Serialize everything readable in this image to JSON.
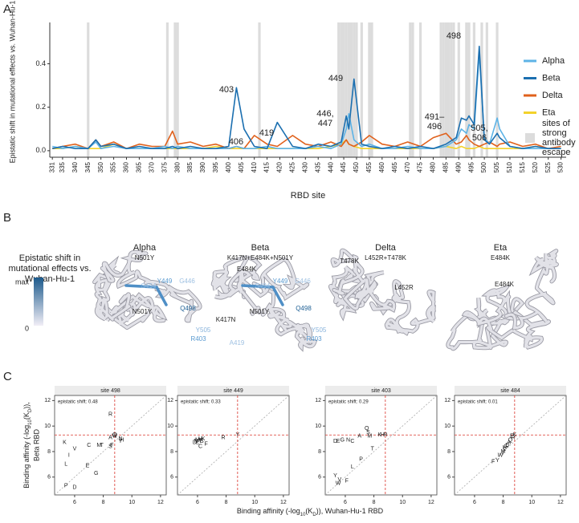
{
  "panel_labels": [
    "A",
    "B",
    "C"
  ],
  "chart_data": [
    {
      "type": "line",
      "y_label": "Epistatic shift in mutational effects vs. Wuhan-Hu-1",
      "x_label": "RBD site",
      "x": [
        331,
        335,
        340,
        345,
        348,
        350,
        355,
        360,
        365,
        370,
        375,
        378,
        380,
        385,
        390,
        395,
        400,
        403,
        406,
        410,
        415,
        419,
        425,
        430,
        435,
        440,
        444,
        446,
        447,
        449,
        452,
        455,
        460,
        465,
        470,
        475,
        480,
        485,
        489,
        491,
        493,
        494,
        496,
        498,
        500,
        502,
        505,
        506,
        510,
        515,
        520,
        525,
        530
      ],
      "xlim": [
        330,
        532
      ],
      "xticks": [
        331,
        335,
        340,
        345,
        350,
        355,
        360,
        365,
        370,
        375,
        380,
        385,
        390,
        395,
        400,
        405,
        410,
        415,
        420,
        425,
        430,
        435,
        440,
        445,
        450,
        455,
        460,
        465,
        470,
        475,
        480,
        485,
        490,
        495,
        500,
        505,
        510,
        515,
        520,
        525,
        530
      ],
      "ylim": [
        -0.03,
        0.59
      ],
      "yticks": [
        {
          "value": 0,
          "label": "0.0"
        },
        0.2,
        0.4
      ],
      "series": [
        {
          "name": "Alpha",
          "color": "#5db3e6",
          "values": [
            0.02,
            0.01,
            0.02,
            0.01,
            0.04,
            0.01,
            0.02,
            0.01,
            0.01,
            0.01,
            0.02,
            0.01,
            0.02,
            0.01,
            0.01,
            0.01,
            0.01,
            0.02,
            0.01,
            0.01,
            0.02,
            0.01,
            0.01,
            0.01,
            0.02,
            0.01,
            0.03,
            0.1,
            0.17,
            0.05,
            0.02,
            0.03,
            0.01,
            0.01,
            0.02,
            0.01,
            0.01,
            0.02,
            0.05,
            0.1,
            0.08,
            0.12,
            0.1,
            0.45,
            0.06,
            0.03,
            0.15,
            0.1,
            0.02,
            0.01,
            0.01,
            0.01,
            0.01
          ]
        },
        {
          "name": "Beta",
          "color": "#1b6fb0",
          "values": [
            0.01,
            0.02,
            0.01,
            0.01,
            0.05,
            0.02,
            0.03,
            0.01,
            0.02,
            0.01,
            0.01,
            0.02,
            0.01,
            0.02,
            0.01,
            0.01,
            0.02,
            0.29,
            0.1,
            0.02,
            0.01,
            0.13,
            0.02,
            0.01,
            0.03,
            0.02,
            0.04,
            0.16,
            0.1,
            0.33,
            0.03,
            0.02,
            0.01,
            0.02,
            0.01,
            0.02,
            0.01,
            0.03,
            0.06,
            0.15,
            0.14,
            0.16,
            0.12,
            0.48,
            0.05,
            0.03,
            0.08,
            0.06,
            0.02,
            0.01,
            0.02,
            0.01,
            0.01
          ]
        },
        {
          "name": "Delta",
          "color": "#e0611c",
          "values": [
            0.01,
            0.02,
            0.03,
            0.01,
            0.05,
            0.02,
            0.04,
            0.01,
            0.03,
            0.02,
            0.02,
            0.09,
            0.03,
            0.04,
            0.02,
            0.03,
            0.01,
            0.02,
            0.01,
            0.07,
            0.03,
            0.02,
            0.07,
            0.03,
            0.02,
            0.04,
            0.02,
            0.05,
            0.03,
            0.02,
            0.04,
            0.07,
            0.03,
            0.02,
            0.04,
            0.02,
            0.06,
            0.08,
            0.03,
            0.04,
            0.07,
            0.05,
            0.03,
            0.02,
            0.03,
            0.04,
            0.02,
            0.03,
            0.04,
            0.02,
            0.03,
            0.01,
            0.02
          ]
        },
        {
          "name": "Eta",
          "color": "#f3d22b",
          "values": [
            0.01,
            0.01,
            0.02,
            0.01,
            0.01,
            0.01,
            0.03,
            0.01,
            0.01,
            0.01,
            0.01,
            0.01,
            0.01,
            0.01,
            0.01,
            0.02,
            0.01,
            0.01,
            0.01,
            0.01,
            0.01,
            0.01,
            0.01,
            0.01,
            0.01,
            0.02,
            0.03,
            0.05,
            0.03,
            0.02,
            0.01,
            0.01,
            0.01,
            0.01,
            0.01,
            0.01,
            0.01,
            0.02,
            0.01,
            0.02,
            0.01,
            0.01,
            0.01,
            0.02,
            0.01,
            0.01,
            0.01,
            0.01,
            0.01,
            0.01,
            0.02,
            0.01,
            0.01
          ]
        }
      ],
      "escape_sites": [
        345,
        376,
        379,
        380,
        412,
        443,
        444,
        445,
        446,
        447,
        448,
        449,
        450,
        452,
        455,
        456,
        471,
        472,
        475,
        483,
        484,
        485,
        486,
        487,
        488,
        490,
        493,
        494,
        496,
        499,
        501,
        505
      ],
      "escape_color": "#dcdcdc",
      "escape_label": [
        "sites of",
        "strong",
        "antibody",
        "escape"
      ],
      "annotations": [
        [
          "403"
        ],
        [
          "406"
        ],
        [
          "419"
        ],
        [
          "446,",
          "447"
        ],
        [
          "449"
        ],
        [
          "491–",
          "496"
        ],
        [
          "498"
        ],
        [
          "505,",
          "506"
        ]
      ]
    },
    {
      "type": "scatter",
      "title": "site 498",
      "annotation": "epistatic shift: 0.48",
      "xlim": [
        4.6,
        12.4
      ],
      "ylim": [
        4.6,
        12.4
      ],
      "xticks": [
        6,
        8,
        10,
        12
      ],
      "yticks": [
        6,
        8,
        10,
        12
      ],
      "reference": {
        "x": 8.8,
        "y": 9.3
      },
      "labels": [
        "R",
        "K",
        "V",
        "C",
        "I",
        "L",
        "E",
        "G",
        "P",
        "D",
        "M",
        "T",
        "A",
        "Q",
        "S",
        "F",
        "N",
        "H",
        "Y",
        "W"
      ],
      "x": [
        8.5,
        5.3,
        6.0,
        7.0,
        5.6,
        5.4,
        6.9,
        7.5,
        5.4,
        6.0,
        7.7,
        7.9,
        8.5,
        8.8,
        8.5,
        8.6,
        9.2,
        9.3,
        9.2,
        8.8
      ],
      "y": [
        10.9,
        8.7,
        8.2,
        8.5,
        7.7,
        7.0,
        6.9,
        6.3,
        5.3,
        5.2,
        8.5,
        8.5,
        9.1,
        9.3,
        8.4,
        8.5,
        9.0,
        8.9,
        8.8,
        9.2
      ]
    },
    {
      "type": "scatter",
      "title": "site 449",
      "annotation": "epistatic shift: 0.33",
      "xlim": [
        4.6,
        12.4
      ],
      "ylim": [
        4.6,
        12.4
      ],
      "xticks": [
        6,
        8,
        10,
        12
      ],
      "yticks": [
        6,
        8,
        10,
        12
      ],
      "reference": {
        "x": 8.8,
        "y": 9.3
      },
      "labels": [
        "D",
        "E",
        "C",
        "N",
        "M",
        "H",
        "R",
        "K",
        "F",
        "S",
        "Y",
        "A",
        "T"
      ],
      "x": [
        5.8,
        6.0,
        6.2,
        5.9,
        6.0,
        6.2,
        7.8,
        6.4,
        6.6,
        6.3,
        8.8,
        6.1,
        6.2
      ],
      "y": [
        8.7,
        8.7,
        8.4,
        8.8,
        8.9,
        9.0,
        9.1,
        9.0,
        8.6,
        8.8,
        9.3,
        8.9,
        8.8
      ]
    },
    {
      "type": "scatter",
      "title": "site 403",
      "annotation": "epistatic shift: 0.29",
      "xlim": [
        4.6,
        12.4
      ],
      "ylim": [
        4.6,
        12.4
      ],
      "xticks": [
        6,
        8,
        10,
        12
      ],
      "yticks": [
        6,
        8,
        10,
        12
      ],
      "reference": {
        "x": 8.8,
        "y": 9.3
      },
      "labels": [
        "Y",
        "V",
        "W",
        "F",
        "L",
        "D",
        "E",
        "G",
        "N",
        "C",
        "A",
        "S",
        "Q",
        "M",
        "K",
        "R",
        "T",
        "P",
        "H"
      ],
      "x": [
        5.3,
        5.6,
        5.5,
        6.1,
        6.5,
        5.3,
        5.5,
        5.8,
        6.2,
        6.5,
        7.0,
        7.6,
        7.5,
        7.7,
        8.4,
        8.8,
        7.9,
        7.1,
        8.6
      ],
      "y": [
        6.1,
        5.8,
        5.5,
        5.7,
        6.8,
        8.8,
        8.8,
        8.9,
        8.9,
        8.8,
        9.2,
        9.5,
        9.8,
        9.2,
        9.3,
        9.3,
        8.2,
        7.4,
        9.3
      ]
    },
    {
      "type": "scatter",
      "title": "site 484",
      "annotation": "epistatic shift: 0.01",
      "xlim": [
        4.6,
        12.4
      ],
      "ylim": [
        4.6,
        12.4
      ],
      "xticks": [
        6,
        8,
        10,
        12
      ],
      "yticks": [
        6,
        8,
        10,
        12
      ],
      "reference": {
        "x": 8.8,
        "y": 9.3
      },
      "labels": [
        "F",
        "Y",
        "W",
        "M",
        "L",
        "K",
        "E",
        "G",
        "A",
        "D",
        "Q",
        "R",
        "H",
        "I"
      ],
      "x": [
        7.3,
        7.6,
        7.8,
        8.0,
        8.1,
        8.8,
        8.6,
        8.2,
        8.4,
        8.3,
        8.5,
        8.7,
        8.1,
        8.0
      ],
      "y": [
        7.2,
        7.3,
        7.7,
        8.0,
        8.2,
        9.3,
        9.2,
        8.4,
        8.7,
        8.5,
        8.9,
        9.1,
        8.3,
        7.9
      ]
    }
  ],
  "panel_b": {
    "colorbar": {
      "title": [
        "Epistatic shift in",
        "mutational effects vs.",
        "Wuhan-Hu-1"
      ],
      "max_label": "max",
      "min_label": "0",
      "top_color": "#1c5a8c",
      "bottom_color": "#f1eef6"
    },
    "structures": [
      {
        "title": "Alpha",
        "mutations": "N501Y",
        "labels": [
          {
            "text": "S494",
            "color": "#9fc1e2"
          },
          {
            "text": "Y449",
            "color": "#5a9ad0"
          },
          {
            "text": "G446",
            "color": "#9fc1e2"
          },
          {
            "text": "N501Y",
            "color": "#222222"
          },
          {
            "text": "Q498",
            "color": "#1d5f94"
          },
          {
            "text": "Y505",
            "color": "#8ab4dc"
          },
          {
            "text": "R403",
            "color": "#5a9ad0"
          }
        ]
      },
      {
        "title": "Beta",
        "mutations": "K417N+E484K+N501Y",
        "labels": [
          {
            "text": "E484K",
            "color": "#222222"
          },
          {
            "text": "S494",
            "color": "#9fc1e2"
          },
          {
            "text": "Y449",
            "color": "#5a9ad0"
          },
          {
            "text": "G446",
            "color": "#9fc1e2"
          },
          {
            "text": "N501Y",
            "color": "#222222"
          },
          {
            "text": "Q498",
            "color": "#1d5f94"
          },
          {
            "text": "K417N",
            "color": "#222222"
          },
          {
            "text": "Y505",
            "color": "#8ab4dc"
          },
          {
            "text": "R403",
            "color": "#5a9ad0"
          },
          {
            "text": "A419",
            "color": "#9fc1e2"
          }
        ]
      },
      {
        "title": "Delta",
        "mutations": "L452R+T478K",
        "labels": [
          {
            "text": "T478K",
            "color": "#222222"
          },
          {
            "text": "L452R",
            "color": "#222222"
          }
        ]
      },
      {
        "title": "Eta",
        "mutations": "E484K",
        "labels": [
          {
            "text": "E484K",
            "color": "#222222"
          }
        ]
      }
    ]
  },
  "panel_c": {
    "x_label": [
      "Binding affinity (-log",
      "10",
      "(K",
      "D",
      "))",
      ", Wuhan-Hu-1 RBD"
    ],
    "y_label": [
      "Binding affinity (-log",
      "10",
      "(K",
      "D",
      "))",
      ","
    ],
    "y_label_line2": "Beta RBD"
  }
}
